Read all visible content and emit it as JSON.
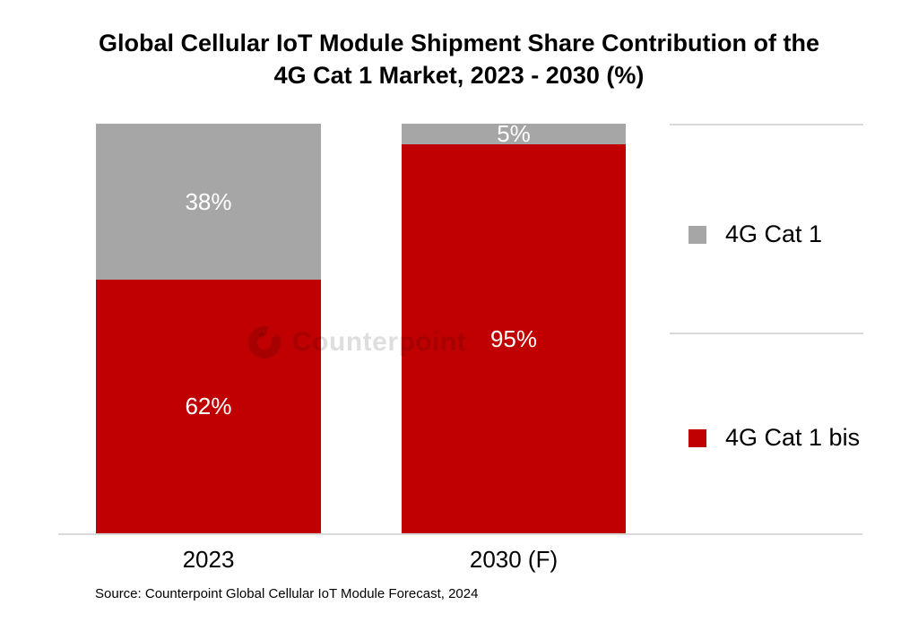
{
  "title_lines": [
    "Global Cellular IoT Module Shipment Share Contribution of the",
    "4G Cat 1 Market, 2023 - 2030 (%)"
  ],
  "watermark": {
    "text": "Counterpoint"
  },
  "source_note": "Source: Counterpoint Global Cellular IoT Module Forecast, 2024",
  "legend": {
    "items": [
      {
        "label": "4G Cat 1",
        "color": "#a6a6a6"
      },
      {
        "label": "4G Cat 1 bis",
        "color": "#c00000"
      }
    ]
  },
  "colors": {
    "cat1_gray": "#a6a6a6",
    "cat1bis_red": "#c00000",
    "axis_line": "#d9d9d9",
    "data_label_text": "#ffffff",
    "text": "#000000"
  },
  "chart_data": {
    "type": "bar",
    "subtype": "stacked-100-percent",
    "title": "Global Cellular IoT Module Shipment Share Contribution of the 4G Cat 1 Market, 2023 - 2030 (%)",
    "categories": [
      "2023",
      "2030 (F)"
    ],
    "series": [
      {
        "name": "4G Cat 1",
        "color": "#a6a6a6",
        "values": [
          38,
          5
        ]
      },
      {
        "name": "4G Cat 1 bis",
        "color": "#c00000",
        "values": [
          62,
          95
        ]
      }
    ],
    "ylim": [
      0,
      100
    ],
    "grid": false,
    "legend_position": "right",
    "data_labels": true,
    "label_suffix": "%",
    "xlabel": "",
    "ylabel": "",
    "source": "Source: Counterpoint Global Cellular IoT Module Forecast, 2024"
  }
}
